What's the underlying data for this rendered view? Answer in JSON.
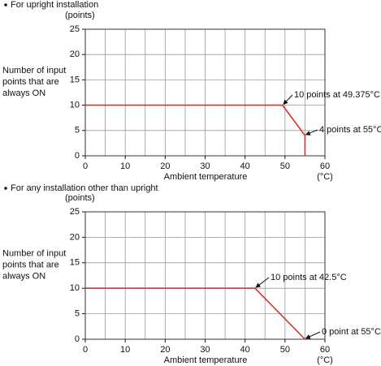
{
  "chart_data": [
    {
      "type": "line",
      "title": "For upright installation",
      "yunit": "(points)",
      "ylabel": [
        "Number of input",
        "points that are",
        "always ON"
      ],
      "xlabel": "Ambient temperature",
      "xunit": "(°C)",
      "xlim": [
        0,
        60
      ],
      "xticks": [
        0,
        10,
        20,
        30,
        40,
        50,
        60
      ],
      "xminor": [
        5,
        15,
        25,
        35,
        45,
        55
      ],
      "ylim": [
        0,
        25
      ],
      "yticks": [
        0,
        5,
        10,
        15,
        20,
        25
      ],
      "grid": true,
      "series": [
        {
          "color": "#e0302a",
          "x": [
            0,
            49.375,
            55,
            55
          ],
          "values": [
            10,
            10,
            4,
            0
          ]
        }
      ],
      "annotations": [
        {
          "text": "10 points at 49.375°C"
        },
        {
          "text": "4 points at 55°C"
        }
      ]
    },
    {
      "type": "line",
      "title": "For any installation other than upright",
      "yunit": "(points)",
      "ylabel": [
        "Number of input",
        "points that are",
        "always ON"
      ],
      "xlabel": "Ambient temperature",
      "xunit": "(°C)",
      "xlim": [
        0,
        60
      ],
      "xticks": [
        0,
        10,
        20,
        30,
        40,
        50,
        60
      ],
      "xminor": [
        5,
        15,
        25,
        35,
        45,
        55
      ],
      "ylim": [
        0,
        25
      ],
      "yticks": [
        0,
        5,
        10,
        15,
        20,
        25
      ],
      "grid": true,
      "series": [
        {
          "color": "#e0302a",
          "x": [
            0,
            42.5,
            55
          ],
          "values": [
            10,
            10,
            0
          ]
        }
      ],
      "annotations": [
        {
          "text": "10 points at 42.5°C"
        },
        {
          "text": "0 point at 55°C"
        }
      ]
    }
  ]
}
